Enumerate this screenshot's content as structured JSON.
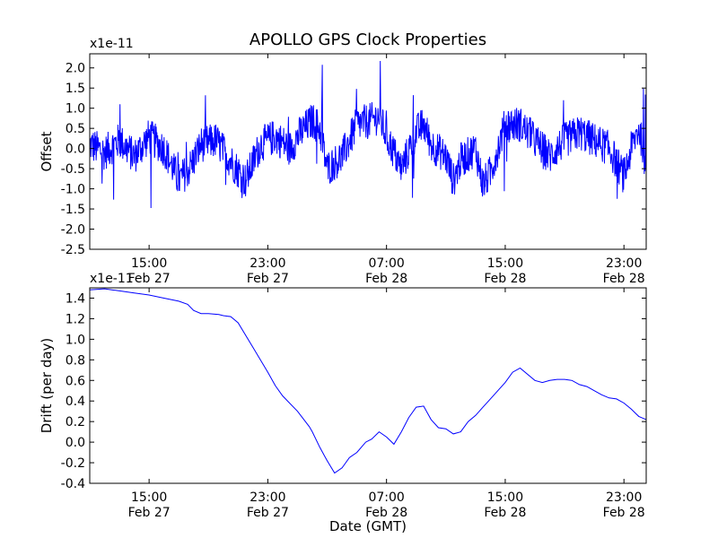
{
  "figure": {
    "title": "APOLLO GPS Clock Properties"
  },
  "chart_data": [
    {
      "type": "line",
      "ylabel": "Offset",
      "multiplier": "x1e-11",
      "ylim": [
        -2.5,
        2.35
      ],
      "yticks": [
        -2.5,
        -2.0,
        -1.5,
        -1.0,
        -0.5,
        0.0,
        0.5,
        1.0,
        1.5,
        2.0
      ],
      "ytick_labels": [
        "-2.5",
        "-2.0",
        "-1.5",
        "-1.0",
        "-0.5",
        "0.0",
        "0.5",
        "1.0",
        "1.5",
        "2.0"
      ],
      "xlim_hours": [
        11.0,
        48.5
      ],
      "xtick_labels": [
        {
          "time": "15:00",
          "date": "Feb 27"
        },
        {
          "time": "23:00",
          "date": "Feb 27"
        },
        {
          "time": "07:00",
          "date": "Feb 28"
        },
        {
          "time": "15:00",
          "date": "Feb 28"
        },
        {
          "time": "23:00",
          "date": "Feb 28"
        }
      ],
      "series": [
        {
          "color": "#0000ff",
          "x": [
            11.0,
            12.0,
            13.0,
            14.0,
            15.0,
            16.0,
            17.0,
            17.7,
            18.5,
            19.5,
            20.5,
            21.5,
            22.5,
            23.5,
            24.5,
            25.0,
            26.0,
            26.5,
            27.0,
            28.0,
            29.0,
            30.0,
            30.5,
            31.0,
            32.0,
            33.0,
            33.5,
            34.0,
            35.0,
            35.5,
            36.0,
            37.0,
            37.5,
            38.0,
            39.0,
            40.0,
            41.0,
            42.0,
            43.0,
            44.0,
            45.0,
            46.0,
            47.0,
            47.5,
            48.0,
            48.5
          ],
          "y": [
            0.1,
            -0.1,
            0.2,
            -0.2,
            0.3,
            0.0,
            -0.8,
            -0.5,
            0.1,
            0.2,
            -0.3,
            -0.8,
            0.1,
            0.3,
            0.0,
            0.3,
            0.7,
            0.5,
            -0.5,
            -0.2,
            0.6,
            0.7,
            0.8,
            0.3,
            -0.5,
            0.4,
            0.6,
            0.1,
            -0.2,
            -0.8,
            -0.3,
            0.0,
            -0.9,
            -0.6,
            0.6,
            0.6,
            0.2,
            -0.2,
            0.2,
            0.4,
            0.2,
            0.0,
            -0.7,
            0.0,
            0.5,
            -0.3
          ]
        }
      ]
    },
    {
      "type": "line",
      "ylabel": "Drift (per day)",
      "xlabel": "Date (GMT)",
      "multiplier": "x1e-11",
      "ylim": [
        -0.4,
        1.5
      ],
      "yticks": [
        -0.4,
        -0.2,
        0.0,
        0.2,
        0.4,
        0.6,
        0.8,
        1.0,
        1.2,
        1.4
      ],
      "ytick_labels": [
        "-0.4",
        "-0.2",
        "0.0",
        "0.2",
        "0.4",
        "0.6",
        "0.8",
        "1.0",
        "1.2",
        "1.4"
      ],
      "xlim_hours": [
        11.0,
        48.5
      ],
      "xtick_labels": [
        {
          "time": "15:00",
          "date": "Feb 27"
        },
        {
          "time": "23:00",
          "date": "Feb 27"
        },
        {
          "time": "07:00",
          "date": "Feb 28"
        },
        {
          "time": "15:00",
          "date": "Feb 28"
        },
        {
          "time": "23:00",
          "date": "Feb 28"
        }
      ],
      "series": [
        {
          "color": "#0000ff",
          "x": [
            11.0,
            12.0,
            13.0,
            14.0,
            15.0,
            16.0,
            17.0,
            17.6,
            18.0,
            18.5,
            19.0,
            19.7,
            20.0,
            20.5,
            21.0,
            22.0,
            23.0,
            23.5,
            24.0,
            25.0,
            25.8,
            26.0,
            26.5,
            27.0,
            27.5,
            28.0,
            28.5,
            29.0,
            29.6,
            30.0,
            30.5,
            31.0,
            31.5,
            32.0,
            32.5,
            33.0,
            33.5,
            34.0,
            34.5,
            35.0,
            35.5,
            36.0,
            36.5,
            37.0,
            37.5,
            38.0,
            38.5,
            39.0,
            39.5,
            40.0,
            41.0,
            41.5,
            42.0,
            42.5,
            43.0,
            43.5,
            44.0,
            44.5,
            45.0,
            45.5,
            46.0,
            46.5,
            47.0,
            47.5,
            48.0,
            48.5
          ],
          "y": [
            1.48,
            1.49,
            1.47,
            1.45,
            1.43,
            1.4,
            1.37,
            1.34,
            1.28,
            1.25,
            1.25,
            1.24,
            1.23,
            1.22,
            1.16,
            0.92,
            0.68,
            0.55,
            0.45,
            0.3,
            0.15,
            0.1,
            -0.05,
            -0.18,
            -0.3,
            -0.25,
            -0.15,
            -0.1,
            0.0,
            0.03,
            0.1,
            0.05,
            -0.02,
            0.1,
            0.24,
            0.34,
            0.35,
            0.22,
            0.14,
            0.13,
            0.08,
            0.1,
            0.2,
            0.26,
            0.34,
            0.42,
            0.5,
            0.58,
            0.68,
            0.72,
            0.6,
            0.58,
            0.6,
            0.61,
            0.61,
            0.6,
            0.56,
            0.54,
            0.5,
            0.46,
            0.43,
            0.42,
            0.38,
            0.32,
            0.25,
            0.22
          ]
        }
      ]
    }
  ]
}
